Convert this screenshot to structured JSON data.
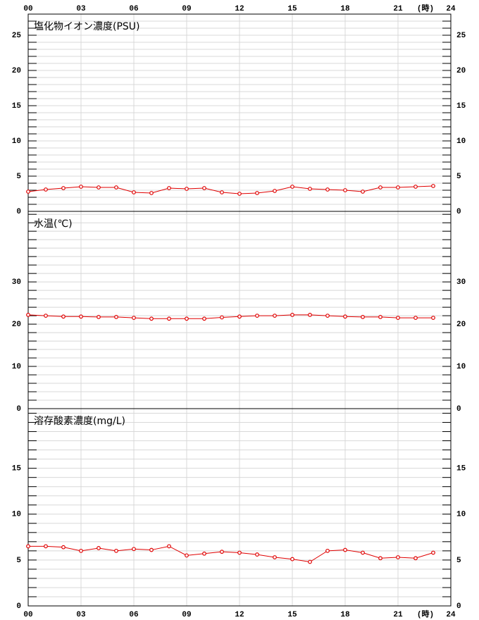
{
  "chart_data": [
    {
      "type": "line",
      "title": "塩化物イオン濃度(PSU)",
      "x_unit": "(時)",
      "x": [
        0,
        1,
        2,
        3,
        4,
        5,
        6,
        7,
        8,
        9,
        10,
        11,
        12,
        13,
        14,
        15,
        16,
        17,
        18,
        19,
        20,
        21,
        22,
        23
      ],
      "xlim": [
        0,
        24
      ],
      "xticks": [
        {
          "value": 0,
          "label": "00"
        },
        {
          "value": 3,
          "label": "03"
        },
        {
          "value": 6,
          "label": "06"
        },
        {
          "value": 9,
          "label": "09"
        },
        12,
        15,
        18,
        21,
        24
      ],
      "ylim": [
        0,
        28
      ],
      "yticks": [
        0,
        5,
        10,
        15,
        20,
        25
      ],
      "minor_yticks": [
        1,
        2,
        3,
        4,
        6,
        7,
        8,
        9,
        11,
        12,
        13,
        14,
        16,
        17,
        18,
        19,
        21,
        22,
        23,
        24,
        26,
        27
      ],
      "series": [
        {
          "color": "#e00000",
          "values": [
            2.8,
            3.1,
            3.3,
            3.5,
            3.4,
            3.4,
            2.7,
            2.6,
            3.3,
            3.2,
            3.3,
            2.7,
            2.5,
            2.6,
            2.9,
            3.5,
            3.2,
            3.1,
            3.0,
            2.8,
            3.4,
            3.4,
            3.5,
            3.6
          ]
        }
      ]
    },
    {
      "type": "line",
      "title": "水温(℃)",
      "x": [
        0,
        1,
        2,
        3,
        4,
        5,
        6,
        7,
        8,
        9,
        10,
        11,
        12,
        13,
        14,
        15,
        16,
        17,
        18,
        19,
        20,
        21,
        22,
        23
      ],
      "xlim": [
        0,
        24
      ],
      "ylim": [
        0,
        46.7
      ],
      "yticks": [
        0,
        10,
        20,
        30
      ],
      "minor_yticks": [
        2,
        4,
        6,
        8,
        12,
        14,
        16,
        18,
        22,
        24,
        26,
        28,
        32,
        34,
        36,
        38,
        40,
        42,
        44,
        46
      ],
      "series": [
        {
          "color": "#e00000",
          "values": [
            22.2,
            22.0,
            21.8,
            21.8,
            21.7,
            21.7,
            21.5,
            21.3,
            21.3,
            21.3,
            21.3,
            21.6,
            21.8,
            22.0,
            22.0,
            22.2,
            22.2,
            22.0,
            21.8,
            21.7,
            21.7,
            21.5,
            21.5,
            21.5
          ]
        }
      ]
    },
    {
      "type": "line",
      "title": "溶存酸素濃度(mg/L)",
      "x_unit": "(時)",
      "x": [
        0,
        1,
        2,
        3,
        4,
        5,
        6,
        7,
        8,
        9,
        10,
        11,
        12,
        13,
        14,
        15,
        16,
        17,
        18,
        19,
        20,
        21,
        22,
        23
      ],
      "xlim": [
        0,
        24
      ],
      "xticks": [
        {
          "value": 0,
          "label": "00"
        },
        {
          "value": 3,
          "label": "03"
        },
        {
          "value": 6,
          "label": "06"
        },
        {
          "value": 9,
          "label": "09"
        },
        12,
        15,
        18,
        21,
        24
      ],
      "ylim": [
        0,
        21.5
      ],
      "yticks": [
        0,
        5,
        10,
        15
      ],
      "minor_yticks": [
        1,
        2,
        3,
        4,
        6,
        7,
        8,
        9,
        11,
        12,
        13,
        14,
        16,
        17,
        18,
        19,
        20,
        21
      ],
      "series": [
        {
          "color": "#e00000",
          "values": [
            6.5,
            6.5,
            6.4,
            6.0,
            6.3,
            6.0,
            6.2,
            6.1,
            6.5,
            5.5,
            5.7,
            5.9,
            5.8,
            5.6,
            5.3,
            5.1,
            4.8,
            6.0,
            6.1,
            5.8,
            5.2,
            5.3,
            5.2,
            5.8
          ]
        }
      ]
    }
  ]
}
